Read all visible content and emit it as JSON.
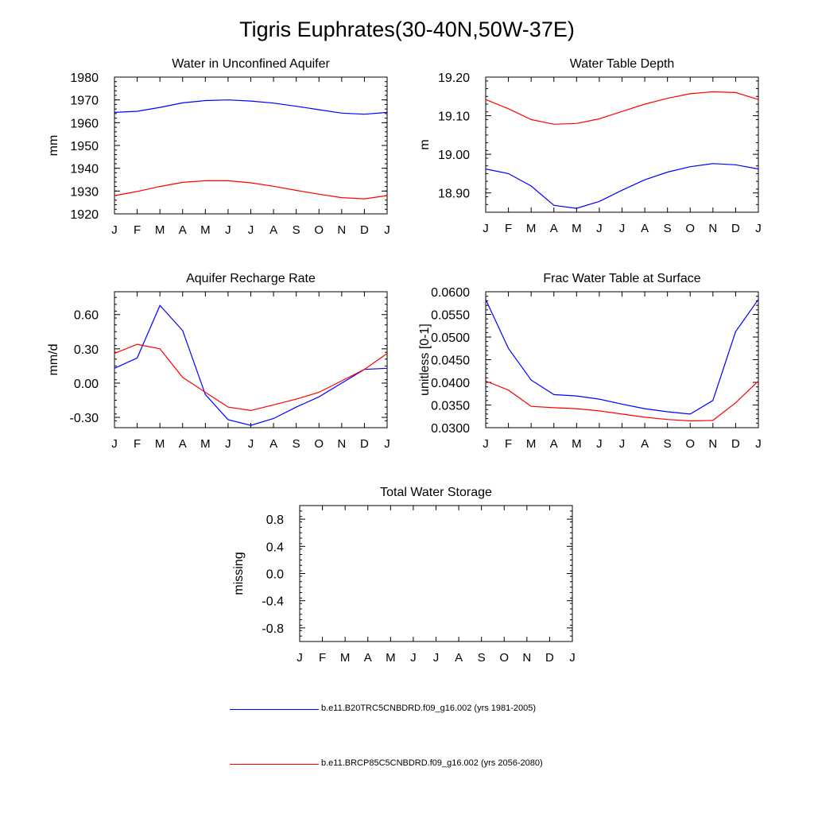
{
  "title": "Tigris Euphrates(30-40N,50W-37E)",
  "colors": {
    "series1": "#0000ff",
    "series2": "#ff0000"
  },
  "legend": [
    {
      "label": "b.e11.B20TRC5CNBDRD.f09_g16.002 (yrs 1981-2005)",
      "color": "#0000ff"
    },
    {
      "label": "b.e11.BRCP85C5CNBDRD.f09_g16.002 (yrs 2056-2080)",
      "color": "#ff0000"
    }
  ],
  "chart_data": [
    {
      "type": "line",
      "title": "Water in Unconfined Aquifer",
      "xlabel": "",
      "ylabel": "mm",
      "categories": [
        "J",
        "F",
        "M",
        "A",
        "M",
        "J",
        "J",
        "A",
        "S",
        "O",
        "N",
        "D",
        "J"
      ],
      "ylim": [
        1920,
        1980
      ],
      "yticks": [
        1920,
        1930,
        1940,
        1950,
        1960,
        1970,
        1980
      ],
      "ytick_labels": [
        "1920",
        "1930",
        "1940",
        "1950",
        "1960",
        "1970",
        "1980"
      ],
      "series": [
        {
          "values": [
            1964.5,
            1965.0,
            1966.7,
            1968.7,
            1969.7,
            1970.0,
            1969.5,
            1968.6,
            1967.2,
            1965.7,
            1964.2,
            1963.7,
            1964.5
          ],
          "color": "#0000ff"
        },
        {
          "values": [
            1928.0,
            1929.8,
            1932.0,
            1933.8,
            1934.5,
            1934.5,
            1933.6,
            1932.1,
            1930.3,
            1928.6,
            1927.1,
            1926.6,
            1928.0
          ],
          "color": "#ff0000"
        }
      ]
    },
    {
      "type": "line",
      "title": "Water Table Depth",
      "xlabel": "",
      "ylabel": "m",
      "categories": [
        "J",
        "F",
        "M",
        "A",
        "M",
        "J",
        "J",
        "A",
        "S",
        "O",
        "N",
        "D",
        "J"
      ],
      "ylim": [
        18.85,
        19.2
      ],
      "yticks": [
        18.9,
        19.0,
        19.1,
        19.2
      ],
      "ytick_labels": [
        "18.90",
        "19.00",
        "19.10",
        "19.20"
      ],
      "series": [
        {
          "values": [
            18.962,
            18.95,
            18.918,
            18.868,
            18.86,
            18.878,
            18.907,
            18.934,
            18.954,
            18.968,
            18.976,
            18.973,
            18.962
          ],
          "color": "#0000ff"
        },
        {
          "values": [
            19.142,
            19.118,
            19.09,
            19.078,
            19.08,
            19.092,
            19.111,
            19.13,
            19.145,
            19.157,
            19.162,
            19.16,
            19.142
          ],
          "color": "#ff0000"
        }
      ]
    },
    {
      "type": "line",
      "title": "Aquifer Recharge Rate",
      "xlabel": "",
      "ylabel": "mm/d",
      "categories": [
        "J",
        "F",
        "M",
        "A",
        "M",
        "J",
        "J",
        "A",
        "S",
        "O",
        "N",
        "D",
        "J"
      ],
      "ylim": [
        -0.39,
        0.8
      ],
      "yticks": [
        -0.3,
        0.0,
        0.3,
        0.6
      ],
      "ytick_labels": [
        "-0.30",
        "0.00",
        "0.30",
        "0.60"
      ],
      "series": [
        {
          "values": [
            0.13,
            0.22,
            0.68,
            0.46,
            -0.1,
            -0.32,
            -0.37,
            -0.31,
            -0.21,
            -0.12,
            0.0,
            0.12,
            0.13
          ],
          "color": "#0000ff"
        },
        {
          "values": [
            0.26,
            0.34,
            0.3,
            0.05,
            -0.08,
            -0.21,
            -0.24,
            -0.19,
            -0.14,
            -0.08,
            0.02,
            0.12,
            0.26
          ],
          "color": "#ff0000"
        }
      ]
    },
    {
      "type": "line",
      "title": "Frac Water Table at Surface",
      "xlabel": "",
      "ylabel": "unitless [0-1]",
      "categories": [
        "J",
        "F",
        "M",
        "A",
        "M",
        "J",
        "J",
        "A",
        "S",
        "O",
        "N",
        "D",
        "J"
      ],
      "ylim": [
        0.03,
        0.06
      ],
      "yticks": [
        0.03,
        0.035,
        0.04,
        0.045,
        0.05,
        0.055,
        0.06
      ],
      "ytick_labels": [
        "0.0300",
        "0.0350",
        "0.0400",
        "0.0450",
        "0.0500",
        "0.0550",
        "0.0600"
      ],
      "series": [
        {
          "values": [
            0.0583,
            0.0475,
            0.0405,
            0.0373,
            0.037,
            0.0363,
            0.0352,
            0.0342,
            0.0335,
            0.033,
            0.036,
            0.0512,
            0.0583
          ],
          "color": "#0000ff"
        },
        {
          "values": [
            0.0403,
            0.0383,
            0.0347,
            0.0344,
            0.0342,
            0.0337,
            0.033,
            0.0323,
            0.0318,
            0.0315,
            0.0316,
            0.0355,
            0.0403
          ],
          "color": "#ff0000"
        }
      ]
    },
    {
      "type": "line",
      "title": "Total Water Storage",
      "xlabel": "",
      "ylabel": "missing",
      "categories": [
        "J",
        "F",
        "M",
        "A",
        "M",
        "J",
        "J",
        "A",
        "S",
        "O",
        "N",
        "D",
        "J"
      ],
      "ylim": [
        -1.0,
        1.0
      ],
      "yticks": [
        -0.8,
        -0.4,
        0.0,
        0.4,
        0.8
      ],
      "ytick_labels": [
        "-0.8",
        "-0.4",
        "0.0",
        "0.4",
        "0.8"
      ],
      "series": []
    }
  ]
}
